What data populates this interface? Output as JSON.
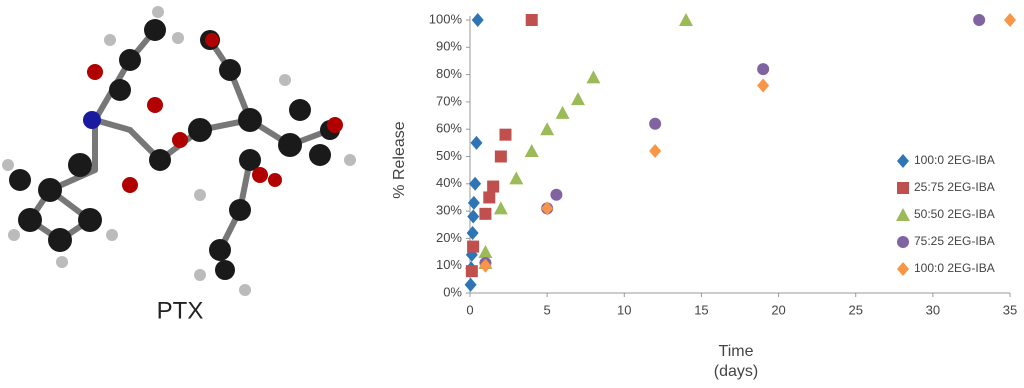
{
  "figure_label": "PTX",
  "chart_data": {
    "type": "scatter",
    "xlabel": [
      "Time",
      "(days)"
    ],
    "ylabel": "% Release",
    "xlim": [
      0,
      35
    ],
    "xticks": [
      0,
      5,
      10,
      15,
      20,
      25,
      30,
      35
    ],
    "ylim": [
      0,
      100
    ],
    "yticks": [
      {
        "value": 0,
        "label": "0%"
      },
      {
        "value": 10,
        "label": "10%"
      },
      {
        "value": 20,
        "label": "20%"
      },
      {
        "value": 30,
        "label": "30%"
      },
      {
        "value": 40,
        "label": "40%"
      },
      {
        "value": 50,
        "label": "50%"
      },
      {
        "value": 60,
        "label": "60%"
      },
      {
        "value": 70,
        "label": "70%"
      },
      {
        "value": 80,
        "label": "80%"
      },
      {
        "value": 90,
        "label": "90%"
      },
      {
        "value": 100,
        "label": "100%"
      }
    ],
    "legend": "right",
    "series": [
      {
        "name": "100:0 2EG-IBA",
        "color": "#2e75b6",
        "marker": "diamond",
        "x": [
          0.04,
          0.08,
          0.12,
          0.17,
          0.21,
          0.25,
          0.33,
          0.42,
          0.5
        ],
        "values": [
          3,
          9,
          14,
          22,
          28,
          33,
          40,
          55,
          100
        ]
      },
      {
        "name": "25:75 2EG-IBA",
        "color": "#c0504d",
        "marker": "square",
        "x": [
          0.12,
          0.2,
          1,
          1.25,
          1.5,
          2,
          2.3,
          4
        ],
        "values": [
          8,
          17,
          29,
          35,
          39,
          50,
          58,
          100
        ]
      },
      {
        "name": "50:50 2EG-IBA",
        "color": "#9bbb59",
        "marker": "triangle",
        "x": [
          1,
          1,
          2,
          3,
          4,
          5,
          6,
          7,
          8,
          14
        ],
        "values": [
          15,
          11,
          31,
          42,
          52,
          60,
          66,
          71,
          79,
          100
        ]
      },
      {
        "name": "75:25 2EG-IBA",
        "color": "#8064a2",
        "marker": "circle",
        "x": [
          1,
          5,
          5.6,
          12,
          19,
          33
        ],
        "values": [
          11,
          31,
          36,
          62,
          82,
          100
        ]
      },
      {
        "name": "100:0 2EG-IBA",
        "color": "#f79646",
        "marker": "diamond",
        "x": [
          1,
          5,
          12,
          19,
          35
        ],
        "values": [
          10,
          31,
          52,
          76,
          100
        ]
      }
    ]
  }
}
